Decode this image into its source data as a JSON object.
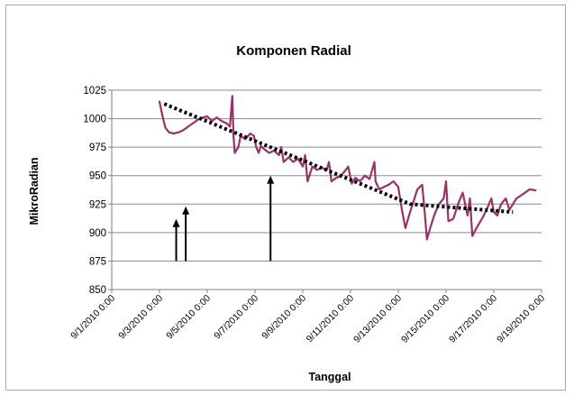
{
  "chart_data": {
    "type": "line",
    "title": "Komponen Radial",
    "xlabel": "Tanggal",
    "ylabel": "MikroRadian",
    "ylim": [
      850,
      1025
    ],
    "yticks": [
      850,
      875,
      900,
      925,
      950,
      975,
      1000,
      1025
    ],
    "xlim_days": [
      1,
      19
    ],
    "xtick_labels": [
      "9/1/2010 0:00",
      "9/3/2010 0:00",
      "9/5/2010 0:00",
      "9/7/2010 0:00",
      "9/9/2010 0:00",
      "9/11/2010 0:00",
      "9/13/2010 0:00",
      "9/15/2010 0:00",
      "9/17/2010 0:00",
      "9/19/2010 0:00"
    ],
    "grid": "horizontal",
    "legend": "none",
    "series": [
      {
        "color": "#993366",
        "style": "solid",
        "x": [
          3.0,
          3.05,
          3.15,
          3.25,
          3.4,
          3.6,
          3.8,
          4.0,
          4.2,
          4.4,
          4.6,
          4.8,
          5.0,
          5.2,
          5.4,
          5.6,
          5.8,
          5.95,
          6.05,
          6.1,
          6.15,
          6.3,
          6.4,
          6.6,
          6.8,
          6.95,
          7.05,
          7.15,
          7.25,
          7.4,
          7.6,
          7.8,
          8.0,
          8.1,
          8.2,
          8.4,
          8.6,
          8.8,
          9.0,
          9.1,
          9.2,
          9.4,
          9.6,
          9.8,
          10.0,
          10.1,
          10.2,
          10.4,
          10.6,
          10.8,
          10.9,
          11.05,
          11.2,
          11.4,
          11.6,
          11.8,
          12.0,
          12.05,
          12.2,
          12.4,
          12.6,
          12.8,
          13.0,
          13.15,
          13.3,
          13.45,
          13.6,
          13.8,
          14.0,
          14.1,
          14.2,
          14.35,
          14.5,
          14.7,
          14.9,
          15.0,
          15.1,
          15.3,
          15.5,
          15.7,
          15.9,
          16.0,
          16.1,
          16.3,
          16.5,
          16.7,
          16.9,
          17.0,
          17.15,
          17.3,
          17.5,
          17.65,
          17.8,
          17.95,
          18.1,
          18.3,
          18.5,
          18.75
        ],
        "values": [
          1015,
          1010,
          1000,
          992,
          988,
          987,
          988,
          990,
          993,
          996,
          999,
          1001,
          1002,
          998,
          1001,
          998,
          996,
          993,
          1020,
          985,
          970,
          975,
          985,
          982,
          987,
          985,
          975,
          970,
          976,
          973,
          970,
          972,
          968,
          975,
          962,
          966,
          962,
          965,
          958,
          968,
          945,
          958,
          955,
          957,
          955,
          962,
          945,
          948,
          950,
          955,
          958,
          943,
          948,
          945,
          950,
          947,
          962,
          945,
          938,
          940,
          942,
          945,
          940,
          920,
          904,
          915,
          925,
          938,
          942,
          920,
          894,
          905,
          915,
          925,
          930,
          945,
          910,
          912,
          925,
          935,
          915,
          930,
          897,
          905,
          912,
          920,
          930,
          918,
          915,
          925,
          930,
          920,
          925,
          930,
          932,
          935,
          938,
          937
        ]
      },
      {
        "color": "#000000",
        "style": "dotted",
        "x": [
          3.2,
          13.5,
          17.8
        ],
        "values": [
          1013,
          925,
          918
        ]
      }
    ],
    "annotations": [
      {
        "type": "arrow",
        "x": 3.7,
        "from": 875,
        "to": 912
      },
      {
        "type": "arrow",
        "x": 4.1,
        "from": 875,
        "to": 923
      },
      {
        "type": "arrow",
        "x": 7.65,
        "from": 875,
        "to": 950
      }
    ]
  }
}
